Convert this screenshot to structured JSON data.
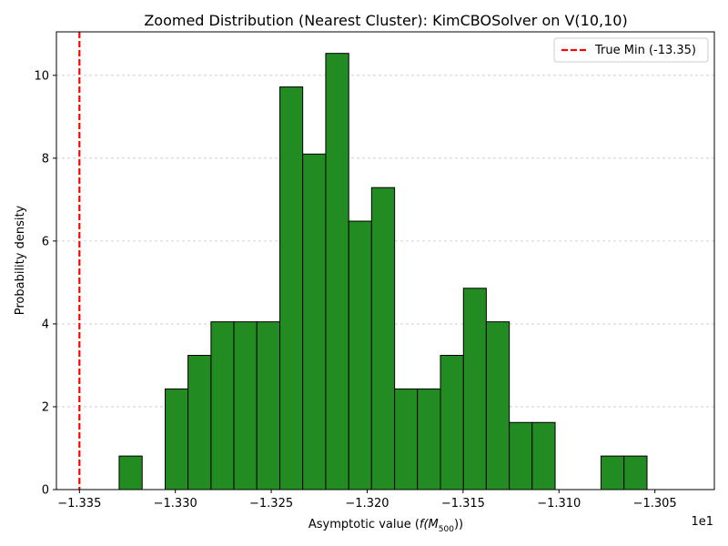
{
  "chart_data": {
    "type": "bar",
    "title": "Zoomed Distribution (Nearest Cluster): KimCBOSolver on V(10,10)",
    "xlabel": "Asymptotic value (",
    "xlabel_math": "f(M",
    "xlabel_sub": "500",
    "xlabel_close": "))",
    "ylabel": "Probability density",
    "offset_text": "1e1",
    "xlim": [
      -1.3362,
      -1.3019
    ],
    "ylim": [
      0,
      11.05
    ],
    "grid": "y-dashed",
    "bar_color": "#228b22",
    "bar_edge": "#000000",
    "x_ticks": [
      -1.335,
      -1.33,
      -1.325,
      -1.32,
      -1.315,
      -1.31,
      -1.305
    ],
    "x_tick_labels": [
      "−1.335",
      "−1.330",
      "−1.325",
      "−1.320",
      "−1.315",
      "−1.310",
      "−1.305"
    ],
    "y_ticks": [
      0,
      2,
      4,
      6,
      8,
      10
    ],
    "y_tick_labels": [
      "0",
      "2",
      "4",
      "6",
      "8",
      "10"
    ],
    "bins": [
      {
        "x0": -1.33293,
        "x1": -1.33173,
        "value": 0.81
      },
      {
        "x0": -1.33053,
        "x1": -1.32934,
        "value": 2.43
      },
      {
        "x0": -1.32934,
        "x1": -1.32814,
        "value": 3.24
      },
      {
        "x0": -1.32814,
        "x1": -1.32695,
        "value": 4.05
      },
      {
        "x0": -1.32695,
        "x1": -1.32575,
        "value": 4.05
      },
      {
        "x0": -1.32575,
        "x1": -1.32455,
        "value": 4.05
      },
      {
        "x0": -1.32455,
        "x1": -1.32336,
        "value": 9.72
      },
      {
        "x0": -1.32336,
        "x1": -1.32216,
        "value": 8.1
      },
      {
        "x0": -1.32216,
        "x1": -1.32096,
        "value": 10.53
      },
      {
        "x0": -1.32096,
        "x1": -1.31977,
        "value": 6.48
      },
      {
        "x0": -1.31977,
        "x1": -1.31857,
        "value": 7.29
      },
      {
        "x0": -1.31857,
        "x1": -1.31738,
        "value": 2.43
      },
      {
        "x0": -1.31738,
        "x1": -1.31618,
        "value": 2.43
      },
      {
        "x0": -1.31618,
        "x1": -1.31498,
        "value": 3.24
      },
      {
        "x0": -1.31498,
        "x1": -1.31379,
        "value": 4.86
      },
      {
        "x0": -1.31379,
        "x1": -1.31259,
        "value": 4.05
      },
      {
        "x0": -1.31259,
        "x1": -1.3114,
        "value": 1.62
      },
      {
        "x0": -1.3114,
        "x1": -1.3102,
        "value": 1.62
      },
      {
        "x0": -1.30781,
        "x1": -1.30661,
        "value": 0.81
      },
      {
        "x0": -1.30661,
        "x1": -1.30541,
        "value": 0.81
      }
    ],
    "reference_line": {
      "x": -1.335,
      "color": "#ff0000",
      "label": "True Min (-13.35)"
    },
    "legend": {
      "placement": "top-right",
      "entries": [
        "True Min (-13.35)"
      ]
    }
  }
}
